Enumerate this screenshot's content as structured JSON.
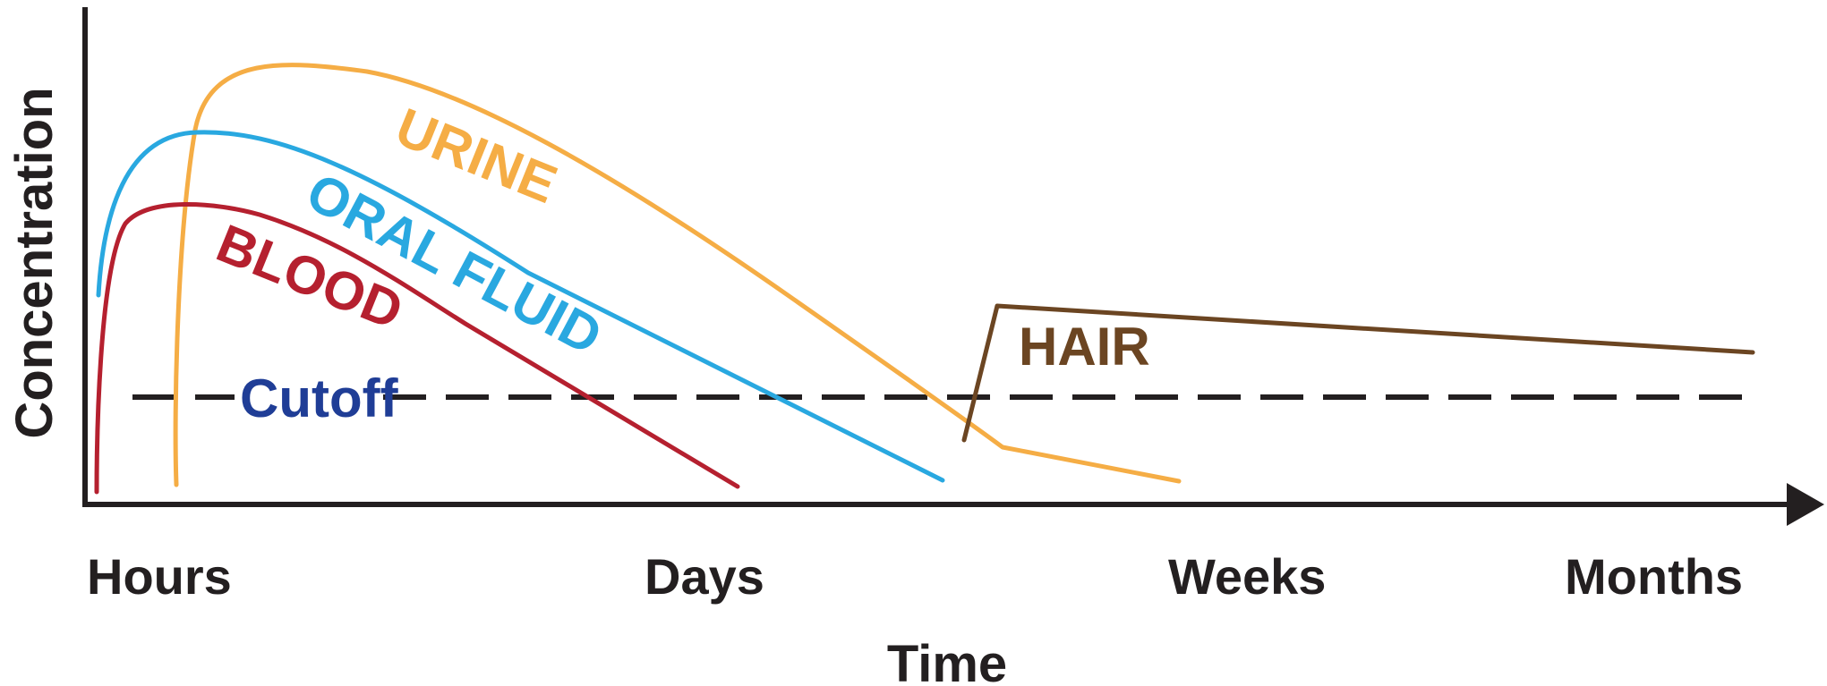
{
  "chart_data": {
    "type": "line",
    "title": "",
    "xlabel": "Time",
    "ylabel": "Concentration",
    "x_categories": [
      "Hours",
      "Days",
      "Weeks",
      "Months"
    ],
    "grid": false,
    "legend": "none",
    "cutoff": {
      "label": "Cutoff",
      "color": "#1f3d96",
      "line_color": "#231f20",
      "style": "dashed"
    },
    "series": [
      {
        "name": "URINE",
        "color": "#f5ad45"
      },
      {
        "name": "ORAL FLUID",
        "color": "#29a8e0"
      },
      {
        "name": "BLOOD",
        "color": "#b5202f"
      },
      {
        "name": "HAIR",
        "color": "#6b4522"
      }
    ]
  }
}
